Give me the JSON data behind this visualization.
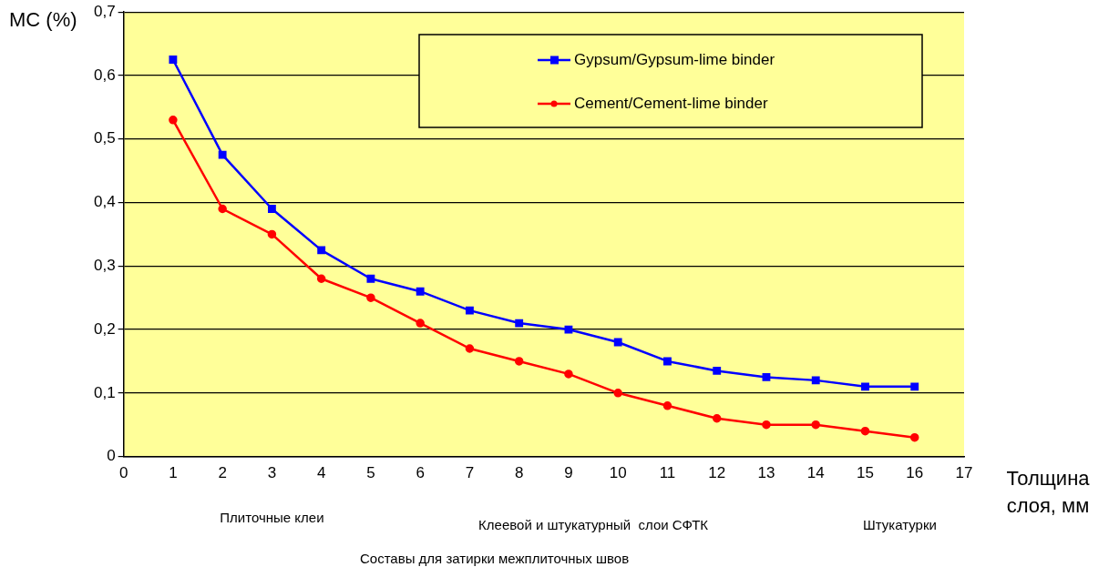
{
  "chart_data": {
    "type": "line",
    "ylabel": "MC (%)",
    "xlabel": "Толщина слоя, мм",
    "x": [
      1,
      2,
      3,
      4,
      5,
      6,
      7,
      8,
      9,
      10,
      11,
      12,
      13,
      14,
      15,
      16
    ],
    "series": [
      {
        "name": "Gypsum/Gypsum-lime binder",
        "color": "#0000ff",
        "marker": "square",
        "values": [
          0.625,
          0.475,
          0.39,
          0.325,
          0.28,
          0.26,
          0.23,
          0.21,
          0.2,
          0.18,
          0.15,
          0.135,
          0.125,
          0.12,
          0.11,
          0.11
        ]
      },
      {
        "name": "Cement/Cement-lime binder",
        "color": "#ff0000",
        "marker": "circle",
        "values": [
          0.53,
          0.39,
          0.35,
          0.28,
          0.25,
          0.21,
          0.17,
          0.15,
          0.13,
          0.1,
          0.08,
          0.06,
          0.05,
          0.05,
          0.04,
          0.03
        ]
      }
    ],
    "xlim": [
      0,
      17
    ],
    "xticks": [
      0,
      1,
      2,
      3,
      4,
      5,
      6,
      7,
      8,
      9,
      10,
      11,
      12,
      13,
      14,
      15,
      16,
      17
    ],
    "ylim": [
      0,
      0.7
    ],
    "yticks": [
      0,
      {
        "value": 0.1,
        "label": "0,1"
      },
      {
        "value": 0.2,
        "label": "0,2"
      },
      {
        "value": 0.3,
        "label": "0,3"
      },
      {
        "value": 0.4,
        "label": "0,4"
      },
      {
        "value": 0.5,
        "label": "0,5"
      },
      {
        "value": 0.6,
        "label": "0,6"
      },
      {
        "value": 0.7,
        "label": "0,7"
      }
    ],
    "grid": "y",
    "legend": "top right",
    "line_style": "solid",
    "annotations": [
      "Плиточные клеи",
      "Клеевой и штукатурный  слои СФТК",
      "Штукатурки",
      "Составы для затирки межплиточных швов"
    ]
  }
}
